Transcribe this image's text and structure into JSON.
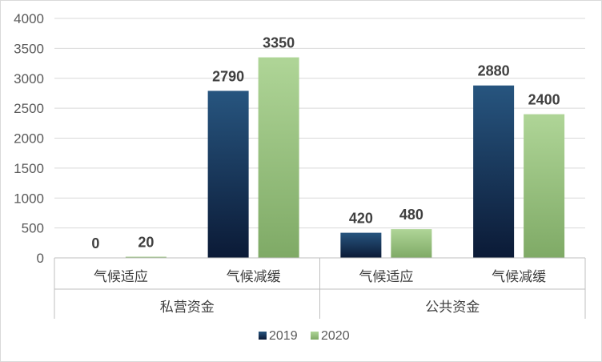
{
  "chart_data": {
    "type": "bar",
    "title": "",
    "xlabel": "",
    "ylabel": "",
    "ylim": [
      0,
      4000
    ],
    "y_ticks": [
      0,
      500,
      1000,
      1500,
      2000,
      2500,
      3000,
      3500,
      4000
    ],
    "groups": [
      {
        "label": "私营资金",
        "categories": [
          "气候适应",
          "气候减缓"
        ]
      },
      {
        "label": "公共资金",
        "categories": [
          "气候适应",
          "气候减缓"
        ]
      }
    ],
    "categories": [
      "气候适应",
      "气候减缓",
      "气候适应",
      "气候减缓"
    ],
    "series": [
      {
        "name": "2019",
        "values": [
          0,
          2790,
          420,
          2880
        ],
        "color": "#1f4e79"
      },
      {
        "name": "2020",
        "values": [
          20,
          3350,
          480,
          2400
        ],
        "color": "#a9d18e"
      }
    ],
    "grid": true,
    "legend_position": "bottom"
  }
}
